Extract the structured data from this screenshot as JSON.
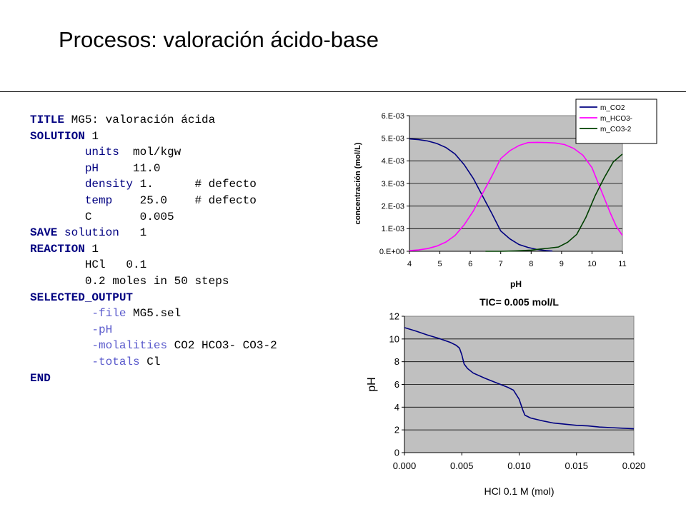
{
  "slide": {
    "title": "Procesos: valoración ácido-base"
  },
  "code": {
    "lines": [
      {
        "indent": "",
        "kw": "TITLE",
        "name": "",
        "val": " MG5: valoración ácida"
      },
      {
        "indent": "",
        "kw": "SOLUTION",
        "name": "",
        "val": " 1"
      },
      {
        "indent": "        ",
        "kw": "",
        "name": "units",
        "val": "  mol/kgw"
      },
      {
        "indent": "        ",
        "kw": "",
        "name": "pH",
        "val": "     11.0"
      },
      {
        "indent": "        ",
        "kw": "",
        "name": "density",
        "val": " 1.      # defecto"
      },
      {
        "indent": "        ",
        "kw": "",
        "name": "temp",
        "val": "    25.0    # defecto"
      },
      {
        "indent": "        ",
        "kw": "",
        "name": "",
        "val": "C       0.005"
      },
      {
        "indent": "",
        "kw": "SAVE",
        "name": " solution",
        "val": "   1"
      },
      {
        "indent": "",
        "kw": "REACTION",
        "name": "",
        "val": " 1"
      },
      {
        "indent": "        ",
        "kw": "",
        "name": "",
        "val": "HCl   0.1"
      },
      {
        "indent": "        ",
        "kw": "",
        "name": "",
        "val": "0.2 moles in 50 steps"
      },
      {
        "indent": "",
        "kw": "SELECTED_OUTPUT",
        "name": "",
        "val": ""
      },
      {
        "indent": "         ",
        "kw": "",
        "name": "-file",
        "val": " MG5.sel"
      },
      {
        "indent": "         ",
        "kw": "",
        "name": "-pH",
        "val": ""
      },
      {
        "indent": "         ",
        "kw": "",
        "name": "-molalities",
        "val": " CO2 HCO3- CO3-2"
      },
      {
        "indent": "         ",
        "kw": "",
        "name": "-totals",
        "val": " Cl"
      },
      {
        "indent": "",
        "kw": "END",
        "name": "",
        "val": ""
      }
    ]
  },
  "chart_data": [
    {
      "type": "line",
      "title": "",
      "xlabel": "pH",
      "ylabel": "concentración (mol/L)",
      "xlim": [
        4,
        11
      ],
      "ylim": [
        0,
        0.006
      ],
      "x_ticks": [
        "4",
        "5",
        "6",
        "7",
        "8",
        "9",
        "10",
        "11"
      ],
      "y_ticks": [
        "0.E+00",
        "1.E-03",
        "2.E-03",
        "3.E-03",
        "4.E-03",
        "5.E-03",
        "6.E-03"
      ],
      "grid": true,
      "background": "#c0c0c0",
      "legend": "top-right",
      "series": [
        {
          "name": "m_CO2",
          "color": "#000080",
          "x": [
            4.0,
            4.3,
            4.6,
            4.9,
            5.2,
            5.5,
            5.8,
            6.1,
            6.4,
            6.7,
            7.0,
            7.3,
            7.6,
            7.9,
            8.2,
            8.5,
            8.7
          ],
          "y": [
            0.00497,
            0.00494,
            0.00488,
            0.00477,
            0.00459,
            0.0043,
            0.00383,
            0.00322,
            0.00245,
            0.0017,
            0.0009,
            0.00055,
            0.0003,
            0.00017,
            8e-05,
            3e-05,
            1e-05
          ]
        },
        {
          "name": "m_HCO3-",
          "color": "#ff00ff",
          "x": [
            4.0,
            4.3,
            4.6,
            4.9,
            5.2,
            5.5,
            5.8,
            6.1,
            6.4,
            6.7,
            7.0,
            7.3,
            7.6,
            7.9,
            8.2,
            8.5,
            8.8,
            9.1,
            9.4,
            9.7,
            10.0,
            10.3,
            10.6,
            10.8,
            11.0
          ],
          "y": [
            3e-05,
            6e-05,
            0.00012,
            0.00023,
            0.00041,
            0.0007,
            0.00117,
            0.00178,
            0.00255,
            0.0033,
            0.0041,
            0.00445,
            0.00468,
            0.00481,
            0.00482,
            0.00481,
            0.00479,
            0.00472,
            0.00455,
            0.00425,
            0.0037,
            0.0027,
            0.0017,
            0.0011,
            0.0007
          ]
        },
        {
          "name": "m_CO3-2",
          "color": "#004000",
          "x": [
            6.5,
            7.0,
            7.5,
            8.0,
            8.3,
            8.6,
            8.9,
            9.2,
            9.5,
            9.8,
            10.1,
            10.4,
            10.7,
            11.0
          ],
          "y": [
            0.0,
            0.0,
            2e-05,
            5e-05,
            0.0001,
            0.00014,
            0.00019,
            0.0004,
            0.00075,
            0.0015,
            0.00245,
            0.00325,
            0.00395,
            0.0043
          ]
        }
      ]
    },
    {
      "type": "line",
      "title": "TIC= 0.005 mol/L",
      "xlabel": "HCl 0.1 M  (mol)",
      "ylabel": "pH",
      "xlim": [
        0,
        0.02
      ],
      "ylim": [
        0,
        12
      ],
      "x_ticks": [
        "0.000",
        "0.005",
        "0.010",
        "0.015",
        "0.020"
      ],
      "y_ticks": [
        "0",
        "2",
        "4",
        "6",
        "8",
        "10",
        "12"
      ],
      "grid": true,
      "background": "#c0c0c0",
      "series": [
        {
          "color": "#000080",
          "x": [
            0.0,
            0.001,
            0.002,
            0.003,
            0.004,
            0.0045,
            0.0048,
            0.005,
            0.0052,
            0.0055,
            0.006,
            0.007,
            0.008,
            0.009,
            0.0095,
            0.01,
            0.0103,
            0.0105,
            0.0107,
            0.011,
            0.012,
            0.013,
            0.014,
            0.015,
            0.016,
            0.017,
            0.018,
            0.019,
            0.02
          ],
          "y": [
            11.0,
            10.7,
            10.35,
            10.05,
            9.7,
            9.45,
            9.2,
            8.6,
            7.8,
            7.4,
            7.0,
            6.55,
            6.15,
            5.75,
            5.5,
            4.7,
            3.8,
            3.3,
            3.2,
            3.05,
            2.8,
            2.6,
            2.5,
            2.4,
            2.35,
            2.25,
            2.2,
            2.15,
            2.1
          ]
        }
      ]
    }
  ]
}
